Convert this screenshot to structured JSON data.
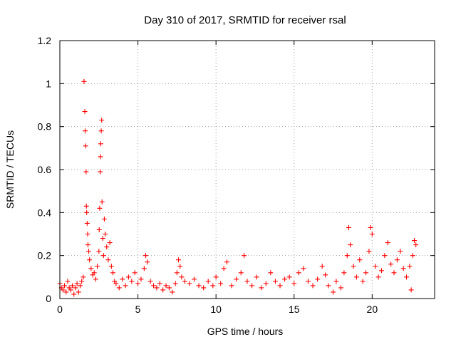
{
  "chart_data": {
    "type": "scatter",
    "title": "Day 310 of 2017, SRMTID for receiver rsal",
    "xlabel": "GPS time / hours",
    "ylabel": "SRMTID / TECUs",
    "xlim": [
      0,
      24
    ],
    "ylim": [
      0,
      1.2
    ],
    "x_ticks": [
      0,
      5,
      10,
      15,
      20
    ],
    "x_tick_labels": [
      "0",
      "5",
      "10",
      "15",
      "20"
    ],
    "y_ticks": [
      0,
      0.2,
      0.4,
      0.6,
      0.8,
      1.0,
      1.2
    ],
    "y_tick_labels": [
      "0",
      "0.2",
      "0.4",
      "0.6",
      "0.8",
      "1",
      "1.2"
    ],
    "grid": true,
    "marker": "+",
    "series": [
      {
        "name": "SRMTID",
        "color": "#ff0000",
        "points": [
          [
            0.0,
            0.07
          ],
          [
            0.1,
            0.05
          ],
          [
            0.2,
            0.04
          ],
          [
            0.3,
            0.06
          ],
          [
            0.4,
            0.03
          ],
          [
            0.5,
            0.08
          ],
          [
            0.6,
            0.05
          ],
          [
            0.7,
            0.04
          ],
          [
            0.8,
            0.06
          ],
          [
            0.9,
            0.02
          ],
          [
            1.0,
            0.05
          ],
          [
            1.1,
            0.07
          ],
          [
            1.2,
            0.03
          ],
          [
            1.3,
            0.06
          ],
          [
            1.4,
            0.08
          ],
          [
            1.5,
            0.1
          ],
          [
            1.55,
            1.01
          ],
          [
            1.6,
            0.87
          ],
          [
            1.62,
            0.78
          ],
          [
            1.65,
            0.71
          ],
          [
            1.68,
            0.59
          ],
          [
            1.7,
            0.43
          ],
          [
            1.72,
            0.4
          ],
          [
            1.75,
            0.35
          ],
          [
            1.78,
            0.3
          ],
          [
            1.8,
            0.25
          ],
          [
            1.85,
            0.22
          ],
          [
            1.9,
            0.18
          ],
          [
            2.0,
            0.14
          ],
          [
            2.1,
            0.11
          ],
          [
            2.2,
            0.12
          ],
          [
            2.3,
            0.09
          ],
          [
            2.4,
            0.15
          ],
          [
            2.5,
            0.22
          ],
          [
            2.52,
            0.32
          ],
          [
            2.55,
            0.42
          ],
          [
            2.58,
            0.59
          ],
          [
            2.6,
            0.66
          ],
          [
            2.62,
            0.72
          ],
          [
            2.65,
            0.78
          ],
          [
            2.68,
            0.83
          ],
          [
            2.7,
            0.45
          ],
          [
            2.75,
            0.28
          ],
          [
            2.8,
            0.2
          ],
          [
            2.85,
            0.37
          ],
          [
            2.9,
            0.3
          ],
          [
            3.0,
            0.24
          ],
          [
            3.1,
            0.18
          ],
          [
            3.2,
            0.26
          ],
          [
            3.3,
            0.15
          ],
          [
            3.4,
            0.12
          ],
          [
            3.5,
            0.08
          ],
          [
            3.6,
            0.07
          ],
          [
            3.8,
            0.05
          ],
          [
            4.0,
            0.09
          ],
          [
            4.2,
            0.06
          ],
          [
            4.4,
            0.1
          ],
          [
            4.6,
            0.08
          ],
          [
            4.8,
            0.12
          ],
          [
            5.0,
            0.07
          ],
          [
            5.2,
            0.09
          ],
          [
            5.4,
            0.14
          ],
          [
            5.5,
            0.2
          ],
          [
            5.6,
            0.17
          ],
          [
            5.8,
            0.08
          ],
          [
            6.0,
            0.06
          ],
          [
            6.2,
            0.05
          ],
          [
            6.4,
            0.07
          ],
          [
            6.6,
            0.04
          ],
          [
            6.8,
            0.06
          ],
          [
            7.0,
            0.05
          ],
          [
            7.2,
            0.03
          ],
          [
            7.4,
            0.07
          ],
          [
            7.5,
            0.12
          ],
          [
            7.6,
            0.18
          ],
          [
            7.7,
            0.15
          ],
          [
            7.8,
            0.1
          ],
          [
            8.0,
            0.08
          ],
          [
            8.3,
            0.07
          ],
          [
            8.6,
            0.09
          ],
          [
            8.9,
            0.06
          ],
          [
            9.2,
            0.05
          ],
          [
            9.5,
            0.08
          ],
          [
            9.8,
            0.06
          ],
          [
            10.0,
            0.1
          ],
          [
            10.3,
            0.07
          ],
          [
            10.5,
            0.14
          ],
          [
            10.7,
            0.17
          ],
          [
            11.0,
            0.06
          ],
          [
            11.3,
            0.09
          ],
          [
            11.6,
            0.12
          ],
          [
            11.8,
            0.2
          ],
          [
            12.0,
            0.08
          ],
          [
            12.3,
            0.06
          ],
          [
            12.6,
            0.1
          ],
          [
            12.9,
            0.05
          ],
          [
            13.2,
            0.07
          ],
          [
            13.5,
            0.12
          ],
          [
            13.8,
            0.08
          ],
          [
            14.1,
            0.06
          ],
          [
            14.4,
            0.09
          ],
          [
            14.7,
            0.1
          ],
          [
            15.0,
            0.07
          ],
          [
            15.3,
            0.12
          ],
          [
            15.6,
            0.14
          ],
          [
            15.9,
            0.08
          ],
          [
            16.2,
            0.06
          ],
          [
            16.5,
            0.09
          ],
          [
            16.8,
            0.15
          ],
          [
            17.0,
            0.11
          ],
          [
            17.2,
            0.06
          ],
          [
            17.5,
            0.03
          ],
          [
            17.7,
            0.08
          ],
          [
            18.0,
            0.05
          ],
          [
            18.2,
            0.12
          ],
          [
            18.4,
            0.2
          ],
          [
            18.5,
            0.33
          ],
          [
            18.6,
            0.25
          ],
          [
            18.8,
            0.15
          ],
          [
            19.0,
            0.1
          ],
          [
            19.2,
            0.18
          ],
          [
            19.4,
            0.08
          ],
          [
            19.6,
            0.12
          ],
          [
            19.8,
            0.22
          ],
          [
            19.9,
            0.33
          ],
          [
            20.0,
            0.3
          ],
          [
            20.2,
            0.15
          ],
          [
            20.4,
            0.1
          ],
          [
            20.6,
            0.13
          ],
          [
            20.8,
            0.2
          ],
          [
            21.0,
            0.26
          ],
          [
            21.2,
            0.16
          ],
          [
            21.4,
            0.12
          ],
          [
            21.6,
            0.18
          ],
          [
            21.8,
            0.22
          ],
          [
            22.0,
            0.14
          ],
          [
            22.2,
            0.1
          ],
          [
            22.4,
            0.15
          ],
          [
            22.5,
            0.04
          ],
          [
            22.6,
            0.2
          ],
          [
            22.7,
            0.27
          ],
          [
            22.8,
            0.25
          ]
        ]
      }
    ]
  }
}
